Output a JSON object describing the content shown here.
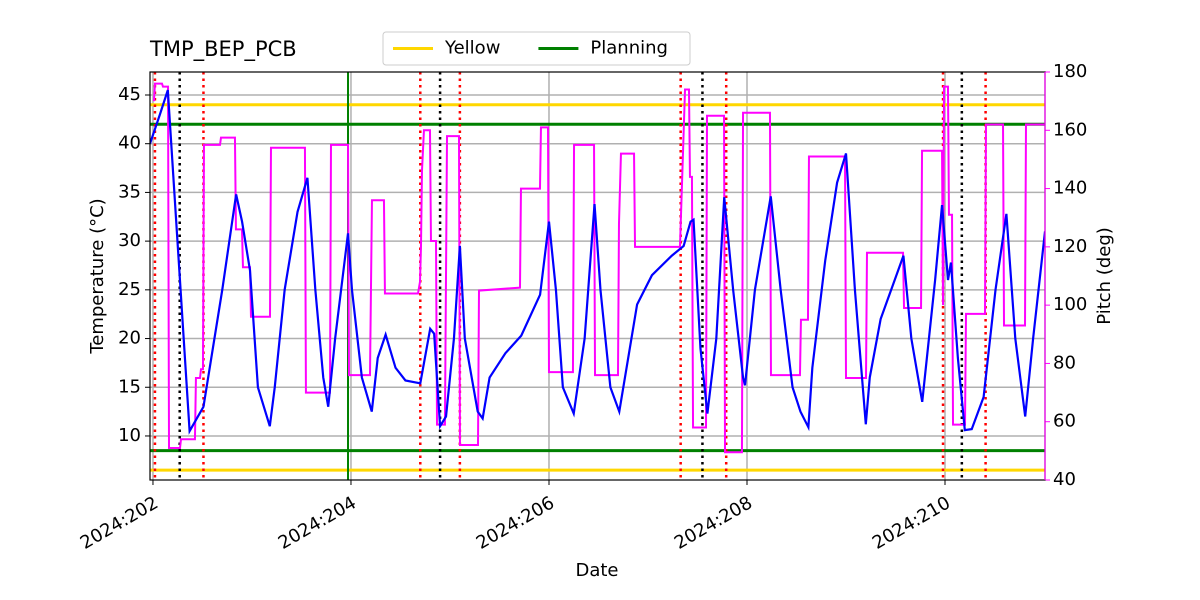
{
  "chart_data": {
    "type": "line",
    "title": "TMP_BEP_PCB",
    "xlabel": "Date",
    "ylabel": "Temperature (°C)",
    "y2label": "Pitch (deg)",
    "xlim": [
      201.97,
      211.01
    ],
    "xticks": [
      {
        "value": 202,
        "label": "2024:202"
      },
      {
        "value": 204,
        "label": "2024:204"
      },
      {
        "value": 206,
        "label": "2024:206"
      },
      {
        "value": 208,
        "label": "2024:208"
      },
      {
        "value": 210,
        "label": "2024:210"
      }
    ],
    "ylim": [
      5.48,
      47.36
    ],
    "yticks": [
      10,
      15,
      20,
      25,
      30,
      35,
      40,
      45
    ],
    "y2lim": [
      40,
      180
    ],
    "y2ticks": [
      40,
      60,
      80,
      100,
      120,
      140,
      160,
      180
    ],
    "y2color": "#ff00ff",
    "grid": true,
    "legend": "top center",
    "series": [
      {
        "color": "#0000ff",
        "axis": "y",
        "x": [
          201.97,
          202.07,
          202.15,
          202.37,
          202.51,
          202.7,
          202.84,
          202.9,
          202.98,
          203.06,
          203.18,
          203.23,
          203.33,
          203.46,
          203.56,
          203.64,
          203.72,
          203.77,
          203.84,
          203.97,
          204.01,
          204.11,
          204.21,
          204.27,
          204.35,
          204.45,
          204.55,
          204.7,
          204.8,
          204.84,
          204.9,
          204.96,
          205.04,
          205.1,
          205.15,
          205.28,
          205.33,
          205.4,
          205.56,
          205.72,
          205.91,
          206.0,
          206.07,
          206.14,
          206.25,
          206.36,
          206.46,
          206.52,
          206.62,
          206.71,
          206.8,
          206.89,
          207.04,
          207.24,
          207.36,
          207.43,
          207.46,
          207.53,
          207.6,
          207.69,
          207.77,
          207.86,
          207.96,
          207.98,
          208.08,
          208.24,
          208.34,
          208.46,
          208.54,
          208.62,
          208.66,
          208.79,
          208.91,
          209.0,
          209.09,
          209.2,
          209.24,
          209.35,
          209.58,
          209.66,
          209.77,
          209.9,
          209.97,
          210.03,
          210.06,
          210.13,
          210.2,
          210.27,
          210.39,
          210.51,
          210.62,
          210.71,
          210.81,
          210.89,
          211.01
        ],
        "values": [
          40,
          43,
          45.5,
          10.5,
          13,
          25,
          34.8,
          32,
          27,
          15,
          11,
          15,
          25,
          33,
          36.5,
          25,
          16,
          13,
          20,
          30.8,
          25,
          16,
          12.5,
          18,
          20.4,
          17,
          15.7,
          15.4,
          21,
          20.5,
          11,
          12,
          20,
          29.5,
          20,
          12.5,
          11.8,
          16,
          18.5,
          20.3,
          24.5,
          32,
          25,
          15,
          12.3,
          20,
          33.8,
          25,
          15,
          12.5,
          18,
          23.5,
          26.5,
          28.5,
          29.5,
          32,
          32.2,
          19,
          12.3,
          20,
          34.5,
          25,
          16,
          15.2,
          25,
          34.6,
          25,
          15,
          12.5,
          10.9,
          17,
          28,
          36,
          39,
          25,
          11.2,
          16,
          22,
          28.5,
          20,
          13.5,
          26,
          33.7,
          26,
          27.8,
          18,
          10.6,
          10.7,
          14,
          25,
          32.8,
          20,
          12,
          20,
          31
        ]
      },
      {
        "color": "#ff00ff",
        "axis": "y2",
        "x": [
          202.01,
          202.02,
          202.091,
          202.101,
          202.152,
          202.162,
          202.273,
          202.283,
          202.424,
          202.434,
          202.475,
          202.485,
          202.505,
          202.515,
          202.677,
          202.687,
          202.828,
          202.838,
          202.899,
          202.909,
          202.98,
          202.99,
          203.182,
          203.192,
          203.535,
          203.545,
          203.788,
          203.798,
          203.97,
          203.98,
          204.192,
          204.212,
          204.333,
          204.343,
          204.677,
          204.697,
          204.707,
          204.717,
          204.737,
          204.798,
          204.808,
          204.859,
          204.869,
          204.949,
          204.97,
          205.091,
          205.101,
          205.283,
          205.293,
          205.707,
          205.717,
          205.909,
          205.919,
          205.99,
          206.0,
          206.242,
          206.253,
          206.455,
          206.465,
          206.697,
          206.707,
          206.727,
          206.859,
          206.869,
          207.323,
          207.374,
          207.414,
          207.424,
          207.444,
          207.455,
          207.586,
          207.596,
          207.768,
          207.778,
          207.949,
          207.96,
          208.232,
          208.242,
          208.535,
          208.545,
          208.616,
          208.626,
          208.99,
          209.0,
          209.202,
          209.212,
          209.576,
          209.586,
          209.758,
          209.768,
          209.97,
          209.98,
          209.99,
          210.03,
          210.04,
          210.071,
          210.081,
          210.202,
          210.212,
          210.404,
          210.414,
          210.586,
          210.596,
          210.808,
          210.818,
          211.01
        ],
        "values": [
          170,
          176,
          176,
          175,
          175,
          51,
          51,
          54,
          54,
          75,
          75,
          78,
          78,
          155,
          155,
          157.5,
          157.5,
          126,
          126,
          113,
          113,
          96,
          96,
          154,
          154,
          70,
          70,
          155,
          155,
          76,
          76,
          136,
          136,
          104,
          104,
          108,
          120,
          146,
          160,
          160,
          122,
          122,
          59,
          59,
          158,
          158,
          52,
          52,
          105,
          106,
          140,
          140,
          161,
          161,
          77,
          77,
          155,
          155,
          76,
          76,
          128,
          152,
          152,
          120,
          120,
          174,
          174,
          144,
          144,
          58,
          58,
          165,
          165,
          49.5,
          49.5,
          166,
          166,
          76,
          76,
          95,
          95,
          151,
          151,
          75,
          75,
          118,
          118,
          99,
          99,
          153,
          153,
          100,
          175,
          175,
          131,
          131,
          59,
          59,
          97,
          97,
          162,
          162,
          93,
          93,
          162,
          162
        ]
      }
    ],
    "hlines": [
      {
        "name": "Yellow",
        "color": "#ffd700",
        "values": [
          44,
          6.5
        ]
      },
      {
        "name": "Planning",
        "color": "#008000",
        "values": [
          42,
          8.5
        ]
      }
    ],
    "vlines": [
      {
        "color": "#008000",
        "style": "solid",
        "x": [
          203.97
        ]
      },
      {
        "color": "#ff0000",
        "style": "dotted",
        "x": [
          202.02,
          202.51,
          204.7,
          205.1,
          207.33,
          207.79,
          209.98,
          210.41
        ]
      },
      {
        "color": "#000000",
        "style": "dotted",
        "x": [
          202.27,
          204.9,
          207.55,
          210.17
        ]
      }
    ]
  }
}
